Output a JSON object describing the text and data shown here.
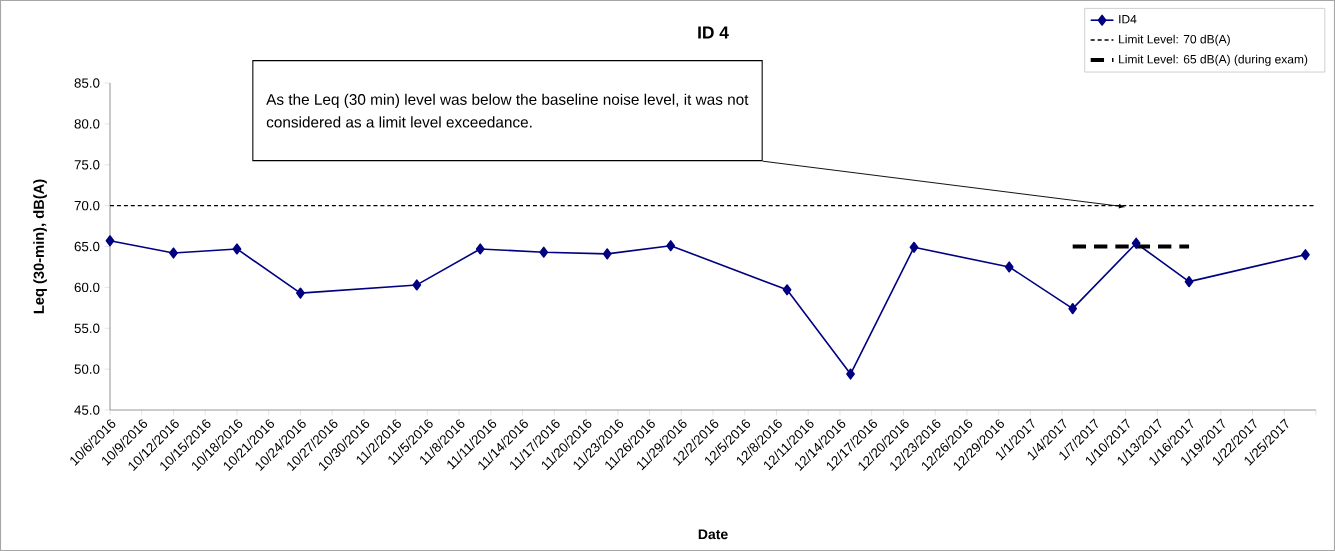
{
  "chart_data": {
    "type": "line",
    "title": "ID 4",
    "xlabel": "Date",
    "ylabel": "Leq (30-min), dB(A)",
    "x": [
      "2016-10-06",
      "2016-10-12",
      "2016-10-18",
      "2016-10-24",
      "2016-11-04",
      "2016-11-10",
      "2016-11-16",
      "2016-11-22",
      "2016-11-28",
      "2016-12-09",
      "2016-12-15",
      "2016-12-21",
      "2016-12-30",
      "2017-01-05",
      "2017-01-11",
      "2017-01-16",
      "2017-01-27"
    ],
    "series": [
      {
        "name": "ID4",
        "color": "#000080",
        "marker": "diamond",
        "line_style": "solid",
        "values": [
          65.7,
          64.2,
          64.7,
          59.3,
          60.3,
          64.7,
          64.3,
          64.1,
          65.1,
          59.7,
          49.4,
          64.9,
          62.5,
          57.4,
          65.4,
          60.7,
          64.0
        ]
      },
      {
        "name": "Limit Level: 70 dB(A)",
        "color": "#000000",
        "marker": "none",
        "line_style": "dotted",
        "x": [
          "2016-10-06",
          "2017-01-28"
        ],
        "values": [
          70,
          70
        ]
      },
      {
        "name": "Limit Level: 65 dB(A) (during exam)",
        "color": "#000000",
        "marker": "none",
        "line_style": "dashed",
        "x": [
          "2017-01-05",
          "2017-01-16"
        ],
        "values": [
          65,
          65
        ]
      }
    ],
    "xlim": [
      "2016-10-06",
      "2017-01-28"
    ],
    "xticks": [
      {
        "value": "2016-10-06",
        "label": "10/6/2016"
      },
      {
        "value": "2016-10-09",
        "label": "10/9/2016"
      },
      {
        "value": "2016-10-12",
        "label": "10/12/2016"
      },
      {
        "value": "2016-10-15",
        "label": "10/15/2016"
      },
      {
        "value": "2016-10-18",
        "label": "10/18/2016"
      },
      {
        "value": "2016-10-21",
        "label": "10/21/2016"
      },
      {
        "value": "2016-10-24",
        "label": "10/24/2016"
      },
      {
        "value": "2016-10-27",
        "label": "10/27/2016"
      },
      {
        "value": "2016-10-30",
        "label": "10/30/2016"
      },
      {
        "value": "2016-11-02",
        "label": "11/2/2016"
      },
      {
        "value": "2016-11-05",
        "label": "11/5/2016"
      },
      {
        "value": "2016-11-08",
        "label": "11/8/2016"
      },
      {
        "value": "2016-11-11",
        "label": "11/11/2016"
      },
      {
        "value": "2016-11-14",
        "label": "11/14/2016"
      },
      {
        "value": "2016-11-17",
        "label": "11/17/2016"
      },
      {
        "value": "2016-11-20",
        "label": "11/20/2016"
      },
      {
        "value": "2016-11-23",
        "label": "11/23/2016"
      },
      {
        "value": "2016-11-26",
        "label": "11/26/2016"
      },
      {
        "value": "2016-11-29",
        "label": "11/29/2016"
      },
      {
        "value": "2016-12-02",
        "label": "12/2/2016"
      },
      {
        "value": "2016-12-05",
        "label": "12/5/2016"
      },
      {
        "value": "2016-12-08",
        "label": "12/8/2016"
      },
      {
        "value": "2016-12-11",
        "label": "12/11/2016"
      },
      {
        "value": "2016-12-14",
        "label": "12/14/2016"
      },
      {
        "value": "2016-12-17",
        "label": "12/17/2016"
      },
      {
        "value": "2016-12-20",
        "label": "12/20/2016"
      },
      {
        "value": "2016-12-23",
        "label": "12/23/2016"
      },
      {
        "value": "2016-12-26",
        "label": "12/26/2016"
      },
      {
        "value": "2016-12-29",
        "label": "12/29/2016"
      },
      {
        "value": "2017-01-01",
        "label": "1/1/2017"
      },
      {
        "value": "2017-01-04",
        "label": "1/4/2017"
      },
      {
        "value": "2017-01-07",
        "label": "1/7/2017"
      },
      {
        "value": "2017-01-10",
        "label": "1/10/2017"
      },
      {
        "value": "2017-01-13",
        "label": "1/13/2017"
      },
      {
        "value": "2017-01-16",
        "label": "1/16/2017"
      },
      {
        "value": "2017-01-19",
        "label": "1/19/2017"
      },
      {
        "value": "2017-01-22",
        "label": "1/22/2017"
      },
      {
        "value": "2017-01-25",
        "label": "1/25/2017"
      },
      {
        "value": "2017-01-28",
        "label": null
      }
    ],
    "ylim": [
      45,
      85
    ],
    "yticks": [
      {
        "value": 45,
        "label": "45.0"
      },
      {
        "value": 50,
        "label": "50.0"
      },
      {
        "value": 55,
        "label": "55.0"
      },
      {
        "value": 60,
        "label": "60.0"
      },
      {
        "value": 65,
        "label": "65.0"
      },
      {
        "value": 70,
        "label": "70.0"
      },
      {
        "value": 75,
        "label": "75.0"
      },
      {
        "value": 80,
        "label": "80.0"
      },
      {
        "value": 85,
        "label": "85.0"
      }
    ],
    "grid": false,
    "legend": "top right",
    "annotations": [
      "As the Leq (30 min) level was below the baseline noise level, it was not considered as a limit level exceedance."
    ]
  }
}
